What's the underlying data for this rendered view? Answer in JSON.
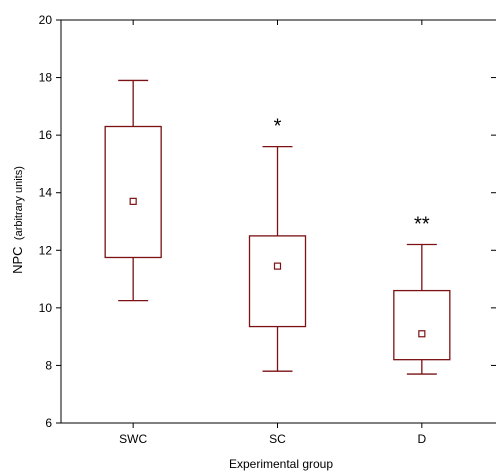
{
  "chart_data": {
    "type": "box",
    "categories": [
      "SWC",
      "SC",
      "D"
    ],
    "boxes": [
      {
        "category": "SWC",
        "whisker_low": 10.25,
        "q1": 11.75,
        "mean": 13.7,
        "q3": 16.3,
        "whisker_high": 17.9,
        "annotation": ""
      },
      {
        "category": "SC",
        "whisker_low": 7.8,
        "q1": 9.35,
        "mean": 11.45,
        "q3": 12.5,
        "whisker_high": 15.6,
        "annotation": "*"
      },
      {
        "category": "D",
        "whisker_low": 7.7,
        "q1": 8.2,
        "mean": 9.1,
        "q3": 10.6,
        "whisker_high": 12.2,
        "annotation": "**"
      }
    ],
    "xlabel": "Experimental group",
    "ylabel_main": "NPC",
    "ylabel_units": "(arbitrary units)",
    "ylim": [
      6,
      20
    ],
    "yticks": [
      6,
      8,
      10,
      12,
      14,
      16,
      18,
      20
    ],
    "grid": false,
    "colors": {
      "box": "#7b1113",
      "axis": "#000000"
    }
  }
}
